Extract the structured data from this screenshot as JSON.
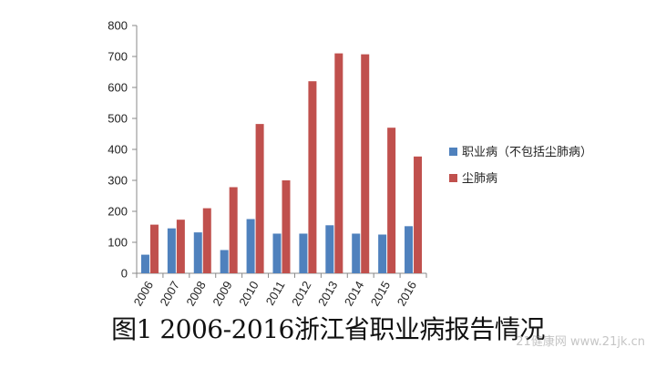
{
  "chart_data": {
    "type": "bar",
    "categories": [
      "2006",
      "2007",
      "2008",
      "2009",
      "2010",
      "2011",
      "2012",
      "2013",
      "2014",
      "2015",
      "2016"
    ],
    "series": [
      {
        "name": "职业病（不包括尘肺病）",
        "color": "#4f81bd",
        "values": [
          60,
          145,
          132,
          75,
          175,
          128,
          128,
          155,
          128,
          125,
          152
        ]
      },
      {
        "name": "尘肺病",
        "color": "#c0504d",
        "values": [
          157,
          173,
          210,
          278,
          482,
          300,
          620,
          710,
          707,
          470,
          377
        ]
      }
    ],
    "yticks": [
      0,
      100,
      200,
      300,
      400,
      500,
      600,
      700,
      800
    ],
    "ylim": [
      0,
      800
    ],
    "legend_position": "right"
  },
  "caption": "图1 2006-2016浙江省职业病报告情况",
  "watermark": "21健康网 www.21jk.cn"
}
